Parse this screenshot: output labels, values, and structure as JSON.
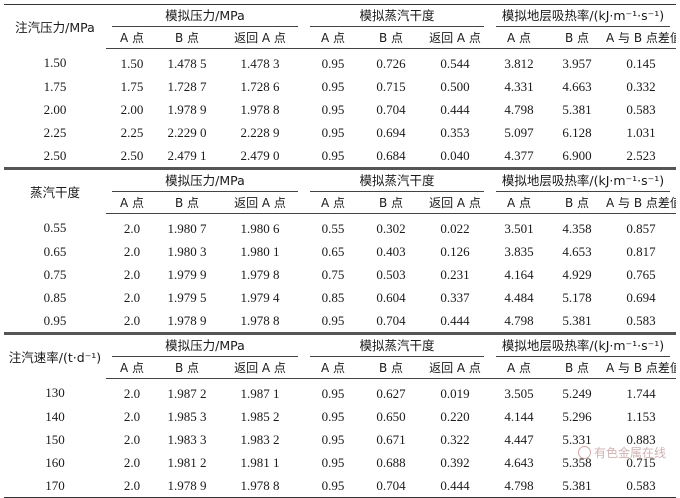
{
  "headers": {
    "pressure_group": "模拟压力/MPa",
    "quality_group": "模拟蒸汽干度",
    "heat_group": "模拟地层吸热率/(kJ·m⁻¹·s⁻¹)",
    "col_A": "A 点",
    "col_B": "B 点",
    "col_return": "返回 A 点",
    "col_diff": "A 与 B 点差值"
  },
  "sections": [
    {
      "row_label": "注汽压力/MPa",
      "rows": [
        [
          "1.50",
          "1.50",
          "1.478 5",
          "1.478 3",
          "0.95",
          "0.726",
          "0.544",
          "3.812",
          "3.957",
          "0.145"
        ],
        [
          "1.75",
          "1.75",
          "1.728 7",
          "1.728 6",
          "0.95",
          "0.715",
          "0.500",
          "4.331",
          "4.663",
          "0.332"
        ],
        [
          "2.00",
          "2.00",
          "1.978 9",
          "1.978 8",
          "0.95",
          "0.704",
          "0.444",
          "4.798",
          "5.381",
          "0.583"
        ],
        [
          "2.25",
          "2.25",
          "2.229 0",
          "2.228 9",
          "0.95",
          "0.694",
          "0.353",
          "5.097",
          "6.128",
          "1.031"
        ],
        [
          "2.50",
          "2.50",
          "2.479 1",
          "2.479 0",
          "0.95",
          "0.684",
          "0.040",
          "4.377",
          "6.900",
          "2.523"
        ]
      ]
    },
    {
      "row_label": "蒸汽干度",
      "rows": [
        [
          "0.55",
          "2.0",
          "1.980 7",
          "1.980 6",
          "0.55",
          "0.302",
          "0.022",
          "3.501",
          "4.358",
          "0.857"
        ],
        [
          "0.65",
          "2.0",
          "1.980 3",
          "1.980 1",
          "0.65",
          "0.403",
          "0.126",
          "3.835",
          "4.653",
          "0.817"
        ],
        [
          "0.75",
          "2.0",
          "1.979 9",
          "1.979 8",
          "0.75",
          "0.503",
          "0.231",
          "4.164",
          "4.929",
          "0.765"
        ],
        [
          "0.85",
          "2.0",
          "1.979 5",
          "1.979 4",
          "0.85",
          "0.604",
          "0.337",
          "4.484",
          "5.178",
          "0.694"
        ],
        [
          "0.95",
          "2.0",
          "1.978 9",
          "1.978 8",
          "0.95",
          "0.704",
          "0.444",
          "4.798",
          "5.381",
          "0.583"
        ]
      ]
    },
    {
      "row_label": "注汽速率/(t·d⁻¹)",
      "rows": [
        [
          "130",
          "2.0",
          "1.987 2",
          "1.987 1",
          "0.95",
          "0.627",
          "0.019",
          "3.505",
          "5.249",
          "1.744"
        ],
        [
          "140",
          "2.0",
          "1.985 3",
          "1.985 2",
          "0.95",
          "0.650",
          "0.220",
          "4.144",
          "5.296",
          "1.153"
        ],
        [
          "150",
          "2.0",
          "1.983 3",
          "1.983 2",
          "0.95",
          "0.671",
          "0.322",
          "4.447",
          "5.331",
          "0.883"
        ],
        [
          "160",
          "2.0",
          "1.981 2",
          "1.981 1",
          "0.95",
          "0.688",
          "0.392",
          "4.643",
          "5.358",
          "0.715"
        ],
        [
          "170",
          "2.0",
          "1.978 9",
          "1.978 8",
          "0.95",
          "0.704",
          "0.444",
          "4.798",
          "5.381",
          "0.583"
        ]
      ]
    }
  ],
  "watermark": "有色金属在线"
}
